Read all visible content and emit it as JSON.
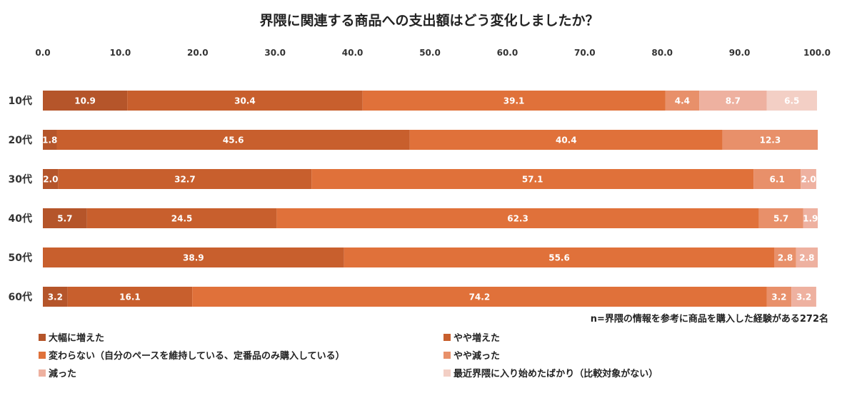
{
  "chart_data": {
    "type": "bar",
    "orientation": "horizontal",
    "stacked": true,
    "title": "界隈に関連する商品への支出額はどう変化しましたか？",
    "note": "n=界隈の情報を参考に商品を購入した経験がある272名",
    "categories": [
      "10代",
      "20代",
      "30代",
      "40代",
      "50代",
      "60代"
    ],
    "xlim": [
      0,
      100
    ],
    "xticks": [
      "0.0",
      "10.0",
      "20.0",
      "30.0",
      "40.0",
      "50.0",
      "60.0",
      "70.0",
      "80.0",
      "90.0",
      "100.0"
    ],
    "legend_position": "bottom",
    "grid": false,
    "series": [
      {
        "name": "大幅に増えた",
        "color": "#b5552a",
        "values": [
          10.9,
          1.8,
          2.0,
          5.7,
          null,
          3.2
        ]
      },
      {
        "name": "やや増えた",
        "color": "#c85f2d",
        "values": [
          30.4,
          45.6,
          32.7,
          24.5,
          38.9,
          16.1
        ]
      },
      {
        "name": "変わらない（自分のペースを維持している、定番品のみ購入している）",
        "color": "#e0713a",
        "values": [
          39.1,
          40.4,
          57.1,
          62.3,
          55.6,
          74.2
        ]
      },
      {
        "name": "やや減った",
        "color": "#e8906a",
        "values": [
          4.4,
          12.3,
          6.1,
          5.7,
          2.8,
          3.2
        ]
      },
      {
        "name": "減った",
        "color": "#eeb1a0",
        "values": [
          8.7,
          null,
          2.0,
          1.9,
          2.8,
          3.2
        ]
      },
      {
        "name": "最近界隈に入り始めたばかり（比較対象がない）",
        "color": "#f3cfc5",
        "values": [
          6.5,
          null,
          null,
          null,
          null,
          null
        ]
      }
    ]
  }
}
